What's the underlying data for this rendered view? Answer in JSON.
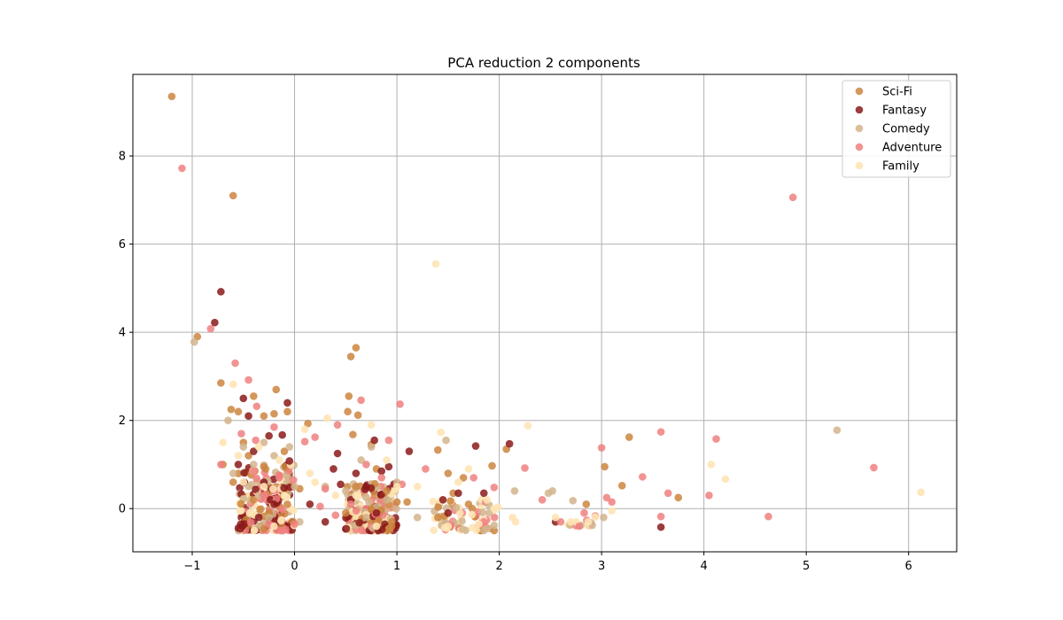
{
  "chart_data": {
    "type": "scatter",
    "title": "PCA reduction 2 components",
    "xlabel": "",
    "ylabel": "",
    "xlim": [
      -1.58,
      6.47
    ],
    "ylim": [
      -0.98,
      9.85
    ],
    "xticks": [
      -1,
      0,
      1,
      2,
      3,
      4,
      5,
      6
    ],
    "yticks": [
      0,
      2,
      4,
      6,
      8
    ],
    "grid": true,
    "legend_position": "top-right",
    "series": [
      {
        "name": "Sci-Fi",
        "color": "#CD853F",
        "alpha": 0.85,
        "points": [
          [
            -1.2,
            9.35
          ],
          [
            -0.6,
            7.1
          ],
          [
            -0.95,
            3.9
          ],
          [
            -0.72,
            2.85
          ],
          [
            -0.4,
            2.55
          ],
          [
            -0.55,
            2.2
          ],
          [
            -0.62,
            2.25
          ],
          [
            -0.3,
            2.1
          ],
          [
            -0.2,
            2.15
          ],
          [
            -0.18,
            2.7
          ],
          [
            -0.07,
            2.2
          ],
          [
            0.13,
            1.93
          ],
          [
            -0.5,
            1.5
          ],
          [
            -0.7,
            1.0
          ],
          [
            -0.45,
            1.2
          ],
          [
            -0.3,
            0.95
          ],
          [
            -0.1,
            1.3
          ],
          [
            -0.6,
            0.6
          ],
          [
            -0.4,
            0.2
          ],
          [
            -0.25,
            -0.1
          ],
          [
            0.05,
            0.45
          ],
          [
            0.55,
            3.45
          ],
          [
            0.6,
            3.65
          ],
          [
            0.53,
            2.55
          ],
          [
            0.52,
            2.2
          ],
          [
            0.62,
            2.12
          ],
          [
            0.57,
            1.68
          ],
          [
            0.75,
            1.45
          ],
          [
            0.8,
            0.9
          ],
          [
            0.6,
            0.5
          ],
          [
            0.9,
            0.4
          ],
          [
            1.0,
            0.15
          ],
          [
            1.1,
            0.15
          ],
          [
            1.4,
            1.33
          ],
          [
            1.5,
            0.8
          ],
          [
            1.55,
            0.35
          ],
          [
            1.65,
            0.7
          ],
          [
            1.7,
            0.1
          ],
          [
            1.93,
            0.97
          ],
          [
            2.07,
            1.35
          ],
          [
            3.03,
            0.95
          ],
          [
            3.2,
            0.52
          ],
          [
            3.27,
            1.62
          ],
          [
            3.75,
            0.25
          ],
          [
            2.85,
            0.1
          ],
          [
            1.4,
            -0.2
          ],
          [
            0.5,
            -0.1
          ],
          [
            0.95,
            -0.3
          ]
        ]
      },
      {
        "name": "Fantasy",
        "color": "#8B1A1A",
        "alpha": 0.85,
        "points": [
          [
            -0.72,
            4.92
          ],
          [
            -0.78,
            4.22
          ],
          [
            -0.5,
            2.5
          ],
          [
            -0.45,
            2.1
          ],
          [
            -0.07,
            2.4
          ],
          [
            -0.12,
            1.67
          ],
          [
            -0.25,
            1.65
          ],
          [
            -0.4,
            1.3
          ],
          [
            -0.55,
            1.0
          ],
          [
            -0.05,
            1.08
          ],
          [
            -0.3,
            0.6
          ],
          [
            -0.2,
            0.1
          ],
          [
            0.15,
            0.1
          ],
          [
            0.42,
            1.25
          ],
          [
            0.38,
            0.9
          ],
          [
            0.6,
            0.8
          ],
          [
            0.7,
            0.5
          ],
          [
            0.78,
            1.55
          ],
          [
            0.85,
            0.85
          ],
          [
            0.92,
            0.95
          ],
          [
            1.12,
            1.3
          ],
          [
            0.45,
            0.55
          ],
          [
            0.55,
            0.2
          ],
          [
            0.8,
            -0.1
          ],
          [
            1.45,
            0.2
          ],
          [
            1.5,
            -0.1
          ],
          [
            1.6,
            0.35
          ],
          [
            1.77,
            1.42
          ],
          [
            1.85,
            0.35
          ],
          [
            2.1,
            1.47
          ],
          [
            2.55,
            -0.3
          ],
          [
            3.58,
            -0.42
          ],
          [
            0.3,
            -0.3
          ],
          [
            -0.35,
            -0.2
          ]
        ]
      },
      {
        "name": "Comedy",
        "color": "#D2B48C",
        "alpha": 0.85,
        "points": [
          [
            -0.98,
            3.78
          ],
          [
            -0.65,
            2.0
          ],
          [
            -0.5,
            1.4
          ],
          [
            -0.4,
            1.0
          ],
          [
            -0.3,
            1.5
          ],
          [
            -0.2,
            1.2
          ],
          [
            -0.05,
            1.4
          ],
          [
            0.0,
            0.5
          ],
          [
            -0.45,
            0.5
          ],
          [
            -0.35,
            0.3
          ],
          [
            -0.25,
            -0.2
          ],
          [
            0.05,
            -0.3
          ],
          [
            0.3,
            0.5
          ],
          [
            0.5,
            0.4
          ],
          [
            0.65,
            1.1
          ],
          [
            0.75,
            1.4
          ],
          [
            1.0,
            0.6
          ],
          [
            1.2,
            -0.2
          ],
          [
            1.48,
            1.55
          ],
          [
            1.58,
            0.02
          ],
          [
            1.9,
            -0.1
          ],
          [
            2.15,
            0.4
          ],
          [
            2.48,
            0.35
          ],
          [
            2.52,
            0.4
          ],
          [
            2.72,
            0.18
          ],
          [
            3.02,
            -0.2
          ],
          [
            5.3,
            1.78
          ],
          [
            0.7,
            -0.2
          ],
          [
            0.9,
            0.2
          ],
          [
            -0.6,
            0.8
          ]
        ]
      },
      {
        "name": "Adventure",
        "color": "#F08080",
        "alpha": 0.85,
        "points": [
          [
            -1.1,
            7.72
          ],
          [
            -0.82,
            4.08
          ],
          [
            -0.58,
            3.3
          ],
          [
            -0.45,
            2.92
          ],
          [
            -0.37,
            2.32
          ],
          [
            -0.2,
            1.85
          ],
          [
            -0.52,
            1.7
          ],
          [
            -0.38,
            1.55
          ],
          [
            0.2,
            1.62
          ],
          [
            0.1,
            1.52
          ],
          [
            -0.72,
            1.0
          ],
          [
            -0.4,
            0.85
          ],
          [
            -0.15,
            0.7
          ],
          [
            0.3,
            0.45
          ],
          [
            0.65,
            2.46
          ],
          [
            0.42,
            1.9
          ],
          [
            0.92,
            1.55
          ],
          [
            1.03,
            2.37
          ],
          [
            0.7,
            1.0
          ],
          [
            0.85,
            0.7
          ],
          [
            1.05,
            0.55
          ],
          [
            1.28,
            0.9
          ],
          [
            1.75,
            0.7
          ],
          [
            1.95,
            0.48
          ],
          [
            2.25,
            0.92
          ],
          [
            2.42,
            0.2
          ],
          [
            2.83,
            -0.1
          ],
          [
            3.0,
            1.38
          ],
          [
            3.05,
            0.25
          ],
          [
            3.1,
            0.15
          ],
          [
            3.4,
            0.72
          ],
          [
            3.58,
            -0.18
          ],
          [
            3.58,
            1.74
          ],
          [
            3.65,
            0.35
          ],
          [
            4.05,
            0.3
          ],
          [
            4.12,
            1.58
          ],
          [
            4.63,
            -0.18
          ],
          [
            4.87,
            7.06
          ],
          [
            5.66,
            0.93
          ],
          [
            0.4,
            -0.15
          ],
          [
            0.55,
            0.1
          ],
          [
            -0.3,
            0.3
          ],
          [
            1.85,
            -0.3
          ],
          [
            2.6,
            -0.3
          ],
          [
            0.25,
            0.05
          ],
          [
            0.0,
            -0.35
          ]
        ]
      },
      {
        "name": "Family",
        "color": "#FFE4B5",
        "alpha": 0.9,
        "points": [
          [
            -0.6,
            2.82
          ],
          [
            -0.7,
            1.5
          ],
          [
            -0.55,
            1.2
          ],
          [
            -0.35,
            1.4
          ],
          [
            -0.15,
            1.1
          ],
          [
            -0.5,
            0.6
          ],
          [
            -0.3,
            0.5
          ],
          [
            -0.1,
            0.3
          ],
          [
            0.1,
            1.8
          ],
          [
            0.32,
            2.05
          ],
          [
            0.2,
            0.6
          ],
          [
            0.15,
            0.8
          ],
          [
            0.4,
            0.3
          ],
          [
            0.6,
            0.3
          ],
          [
            0.75,
            1.9
          ],
          [
            0.9,
            1.1
          ],
          [
            1.0,
            0.5
          ],
          [
            1.2,
            0.5
          ],
          [
            1.38,
            5.55
          ],
          [
            1.43,
            1.73
          ],
          [
            1.6,
            0.6
          ],
          [
            1.7,
            0.9
          ],
          [
            1.88,
            0.2
          ],
          [
            1.95,
            0.0
          ],
          [
            2.13,
            -0.2
          ],
          [
            2.16,
            -0.3
          ],
          [
            2.28,
            1.88
          ],
          [
            2.55,
            -0.2
          ],
          [
            2.7,
            -0.3
          ],
          [
            2.87,
            -0.3
          ],
          [
            3.1,
            -0.05
          ],
          [
            4.07,
            1.0
          ],
          [
            4.21,
            0.67
          ],
          [
            6.12,
            0.37
          ],
          [
            0.8,
            -0.4
          ],
          [
            -0.2,
            -0.4
          ],
          [
            1.5,
            -0.4
          ],
          [
            1.8,
            -0.35
          ]
        ]
      }
    ],
    "dense_clusters": [
      {
        "series": [
          "Family",
          "Comedy",
          "Sci-Fi",
          "Adventure",
          "Fantasy"
        ],
        "x_range": [
          -0.55,
          0.0
        ],
        "y_range": [
          -0.5,
          1.0
        ],
        "count": 220
      },
      {
        "series": [
          "Family",
          "Adventure",
          "Fantasy",
          "Sci-Fi",
          "Comedy"
        ],
        "x_range": [
          0.5,
          1.0
        ],
        "y_range": [
          -0.5,
          0.6
        ],
        "count": 200
      },
      {
        "series": [
          "Family",
          "Adventure",
          "Sci-Fi",
          "Comedy"
        ],
        "x_range": [
          1.35,
          2.0
        ],
        "y_range": [
          -0.5,
          0.2
        ],
        "count": 70
      },
      {
        "series": [
          "Family",
          "Comedy",
          "Adventure"
        ],
        "x_range": [
          2.65,
          2.95
        ],
        "y_range": [
          -0.4,
          -0.15
        ],
        "count": 15
      }
    ]
  }
}
